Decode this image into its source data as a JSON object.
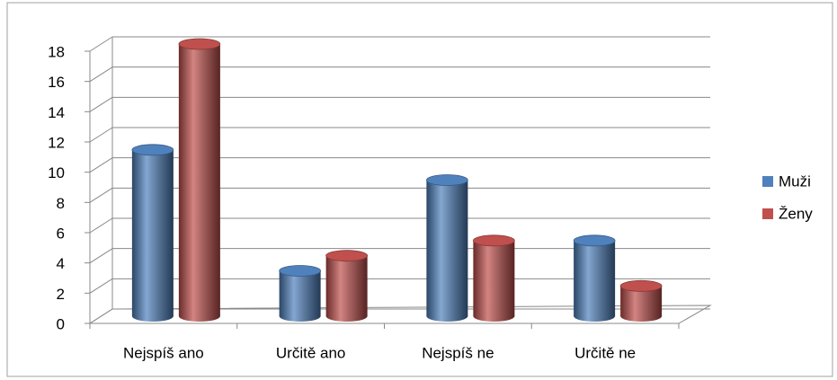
{
  "chart_data": {
    "type": "bar3d",
    "categories": [
      "Nejspíš ano",
      "Určitě ano",
      "Nejspíš ne",
      "Určitě ne"
    ],
    "series": [
      {
        "name": "Muži",
        "color": "#4f81bd",
        "values": [
          11,
          3,
          9,
          5
        ]
      },
      {
        "name": "Ženy",
        "color": "#c0504d",
        "values": [
          18,
          4,
          5,
          2
        ]
      }
    ],
    "ylim": [
      0,
      18
    ],
    "yticks": [
      0,
      2,
      4,
      6,
      8,
      10,
      12,
      14,
      16,
      18
    ],
    "grid": true,
    "legend": "right"
  }
}
